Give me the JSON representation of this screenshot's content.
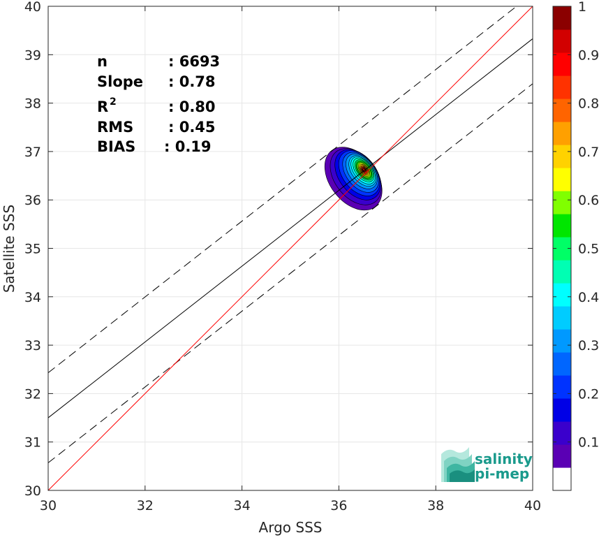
{
  "chart_data": {
    "type": "scatter-density-contour",
    "xlabel": "Argo SSS",
    "ylabel": "Satellite SSS",
    "xlim": [
      30,
      40
    ],
    "ylim": [
      30,
      40
    ],
    "xticks": [
      "30",
      "32",
      "34",
      "36",
      "38",
      "40"
    ],
    "yticks": [
      "30",
      "31",
      "32",
      "33",
      "34",
      "35",
      "36",
      "37",
      "38",
      "39",
      "40"
    ],
    "grid": true,
    "stats": [
      {
        "label": "n",
        "value": ": 6693"
      },
      {
        "label": "Slope",
        "value": ": 0.78"
      },
      {
        "label": "R",
        "sup": "2",
        "value": ": 0.80"
      },
      {
        "label": "RMS",
        "value": ": 0.45"
      },
      {
        "label": "BIAS",
        "value": ": 0.19"
      }
    ],
    "lines": {
      "identity": {
        "x": [
          30,
          40
        ],
        "y": [
          30,
          40
        ],
        "color": "#ff0000"
      },
      "fit": {
        "x": [
          30,
          40
        ],
        "y": [
          31.5,
          39.33
        ],
        "color": "#000000"
      },
      "fit_upper": {
        "x": [
          30,
          40
        ],
        "y": [
          32.43,
          40.26
        ],
        "color": "#000000",
        "dashed": true
      },
      "fit_lower": {
        "x": [
          30,
          40
        ],
        "y": [
          30.57,
          38.4
        ],
        "color": "#000000",
        "dashed": true
      }
    },
    "density": {
      "center": [
        36.52,
        36.62
      ],
      "levels": [
        0.05,
        0.1,
        0.15,
        0.2,
        0.25,
        0.3,
        0.35,
        0.4,
        0.45,
        0.5,
        0.55,
        0.6,
        0.65,
        0.7,
        0.75,
        0.8,
        0.85,
        0.9,
        0.95
      ],
      "rx": [
        0.78,
        0.7,
        0.62,
        0.55,
        0.48,
        0.42,
        0.36,
        0.31,
        0.27,
        0.23,
        0.2,
        0.17,
        0.14,
        0.12,
        0.1,
        0.08,
        0.06,
        0.045,
        0.03
      ],
      "ry": [
        0.75,
        0.67,
        0.6,
        0.54,
        0.48,
        0.42,
        0.37,
        0.33,
        0.29,
        0.25,
        0.22,
        0.19,
        0.16,
        0.135,
        0.11,
        0.09,
        0.07,
        0.05,
        0.035
      ],
      "shift_x": [
        -0.22,
        -0.17,
        -0.13,
        -0.1,
        -0.07,
        -0.05,
        -0.03,
        -0.02,
        -0.01,
        0,
        0,
        0,
        0,
        0,
        0,
        0,
        0,
        0,
        0
      ],
      "shift_y": [
        -0.18,
        -0.14,
        -0.1,
        -0.07,
        -0.05,
        -0.03,
        -0.02,
        -0.01,
        0,
        0,
        0,
        0,
        0,
        0,
        0,
        0,
        0,
        0,
        0
      ]
    },
    "colorbar": {
      "ticks": [
        "0.1",
        "0.2",
        "0.3",
        "0.4",
        "0.5",
        "0.6",
        "0.7",
        "0.8",
        "0.9",
        "1"
      ],
      "tick_values": [
        0.1,
        0.2,
        0.3,
        0.4,
        0.5,
        0.6,
        0.7,
        0.8,
        0.9,
        1.0
      ],
      "range": [
        0,
        1
      ],
      "colors": [
        "#ffffff",
        "#5a00b4",
        "#3a00cc",
        "#0000e6",
        "#0033ff",
        "#0066ff",
        "#0099ff",
        "#00ccff",
        "#00ffff",
        "#00ffb3",
        "#00ff66",
        "#00e600",
        "#80ff00",
        "#ffff00",
        "#ffd200",
        "#ffa000",
        "#ff6400",
        "#ff3200",
        "#ff0000",
        "#d20000",
        "#8b0000"
      ]
    }
  },
  "logo": {
    "line1": "salinity",
    "line2": "pi-mep"
  }
}
